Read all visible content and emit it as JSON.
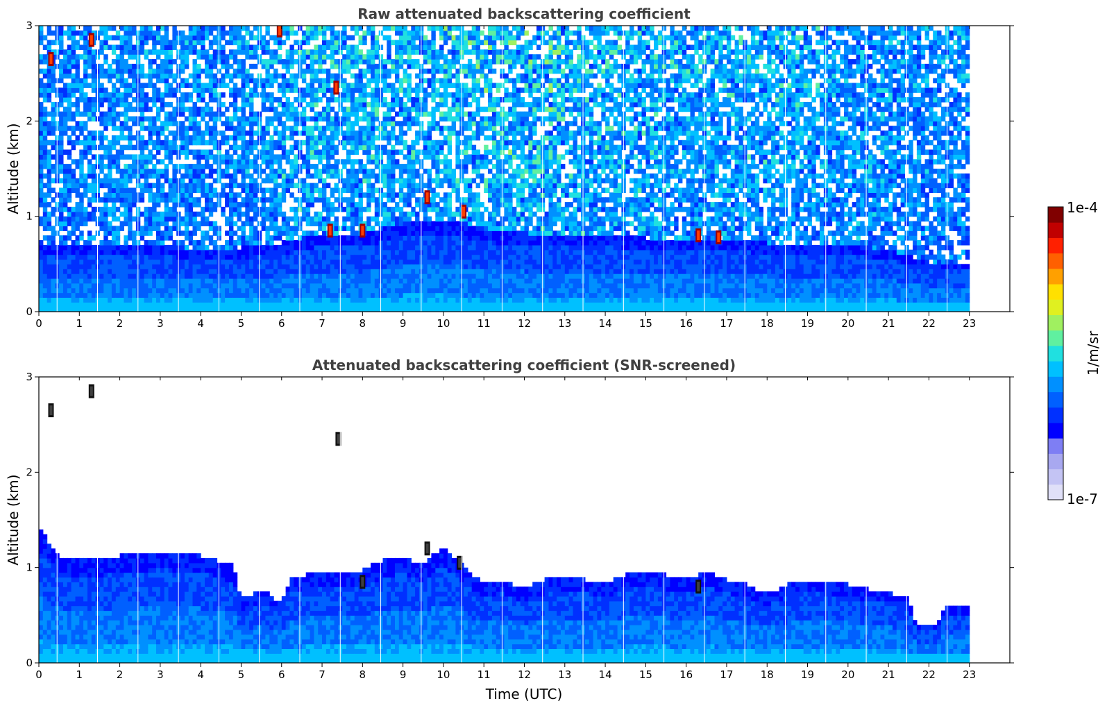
{
  "chart_data": [
    {
      "type": "heatmap",
      "title": "Raw attenuated backscattering coefficient",
      "xlabel": "",
      "ylabel": "Altitude (km)",
      "xlim": [
        0,
        24
      ],
      "ylim": [
        0,
        3
      ],
      "x_ticks": [
        "0",
        "1",
        "2",
        "3",
        "4",
        "5",
        "6",
        "7",
        "8",
        "9",
        "10",
        "11",
        "12",
        "13",
        "14",
        "15",
        "16",
        "17",
        "18",
        "19",
        "20",
        "21",
        "22",
        "23"
      ],
      "y_ticks": [
        "0",
        "1",
        "2",
        "3"
      ],
      "data_extent_x": [
        0,
        23
      ],
      "signal_top_km": [
        [
          0,
          0.7
        ],
        [
          1,
          0.7
        ],
        [
          2,
          0.7
        ],
        [
          3,
          0.7
        ],
        [
          4,
          0.6
        ],
        [
          5,
          0.65
        ],
        [
          6,
          0.7
        ],
        [
          7,
          0.8
        ],
        [
          8,
          0.8
        ],
        [
          9,
          0.9
        ],
        [
          10,
          0.95
        ],
        [
          11,
          0.85
        ],
        [
          12,
          0.8
        ],
        [
          13,
          0.8
        ],
        [
          14,
          0.8
        ],
        [
          15,
          0.75
        ],
        [
          16,
          0.75
        ],
        [
          17,
          0.75
        ],
        [
          18,
          0.7
        ],
        [
          19,
          0.7
        ],
        [
          20,
          0.7
        ],
        [
          21,
          0.62
        ],
        [
          22,
          0.5
        ],
        [
          23,
          0.5
        ]
      ],
      "noise_intensity_by_hour": [
        0.2,
        0.3,
        0.3,
        0.3,
        0.3,
        0.4,
        0.6,
        0.6,
        0.6,
        0.6,
        0.7,
        0.75,
        0.75,
        0.65,
        0.6,
        0.55,
        0.5,
        0.55,
        0.55,
        0.45,
        0.4,
        0.35,
        0.3,
        0.25
      ],
      "aerosol_layers": [
        {
          "x": 0.3,
          "y": 2.65
        },
        {
          "x": 1.3,
          "y": 2.85
        },
        {
          "x": 7.35,
          "y": 2.35
        },
        {
          "x": 5.95,
          "y": 2.95
        },
        {
          "x": 7.2,
          "y": 0.85
        },
        {
          "x": 8.0,
          "y": 0.85
        },
        {
          "x": 9.6,
          "y": 1.2
        },
        {
          "x": 10.5,
          "y": 1.05
        },
        {
          "x": 16.3,
          "y": 0.8
        },
        {
          "x": 16.8,
          "y": 0.78
        }
      ]
    },
    {
      "type": "heatmap",
      "title": "Attenuated backscattering coefficient (SNR-screened)",
      "xlabel": "Time (UTC)",
      "ylabel": "Altitude (km)",
      "xlim": [
        0,
        24
      ],
      "ylim": [
        0,
        3
      ],
      "x_ticks": [
        "0",
        "1",
        "2",
        "3",
        "4",
        "5",
        "6",
        "7",
        "8",
        "9",
        "10",
        "11",
        "12",
        "13",
        "14",
        "15",
        "16",
        "17",
        "18",
        "19",
        "20",
        "21",
        "22",
        "23"
      ],
      "y_ticks": [
        "0",
        "1",
        "2",
        "3"
      ],
      "data_extent_x": [
        0,
        23
      ],
      "screened_top_km": [
        [
          0,
          1.4
        ],
        [
          0.5,
          1.1
        ],
        [
          1,
          1.05
        ],
        [
          2,
          1.1
        ],
        [
          3,
          1.15
        ],
        [
          4,
          1.1
        ],
        [
          4.8,
          1.0
        ],
        [
          5.0,
          0.65
        ],
        [
          5.5,
          0.75
        ],
        [
          6.0,
          0.6
        ],
        [
          6.2,
          0.85
        ],
        [
          7,
          0.95
        ],
        [
          7.5,
          0.9
        ],
        [
          8,
          0.95
        ],
        [
          8.5,
          1.05
        ],
        [
          9,
          1.1
        ],
        [
          9.5,
          1.0
        ],
        [
          10,
          1.2
        ],
        [
          10.5,
          1.0
        ],
        [
          11,
          0.8
        ],
        [
          11.5,
          0.85
        ],
        [
          12,
          0.75
        ],
        [
          12.5,
          0.85
        ],
        [
          13,
          0.9
        ],
        [
          13.5,
          0.85
        ],
        [
          14,
          0.8
        ],
        [
          14.5,
          0.9
        ],
        [
          15,
          0.95
        ],
        [
          15.5,
          0.9
        ],
        [
          16,
          0.85
        ],
        [
          16.5,
          0.95
        ],
        [
          17,
          0.85
        ],
        [
          17.5,
          0.8
        ],
        [
          18,
          0.7
        ],
        [
          18.5,
          0.8
        ],
        [
          19,
          0.85
        ],
        [
          19.5,
          0.85
        ],
        [
          20,
          0.8
        ],
        [
          20.5,
          0.75
        ],
        [
          21,
          0.72
        ],
        [
          21.5,
          0.65
        ],
        [
          21.7,
          0.38
        ],
        [
          22.2,
          0.38
        ],
        [
          22.4,
          0.55
        ],
        [
          23,
          0.58
        ]
      ],
      "aerosol_layers": [
        {
          "x": 0.3,
          "y": 2.65
        },
        {
          "x": 1.3,
          "y": 2.85
        },
        {
          "x": 7.4,
          "y": 2.35
        },
        {
          "x": 8.0,
          "y": 0.85
        },
        {
          "x": 9.6,
          "y": 1.2
        },
        {
          "x": 10.4,
          "y": 1.05
        },
        {
          "x": 16.3,
          "y": 0.8
        }
      ]
    }
  ],
  "colorbar": {
    "label": "1/m/sr",
    "max_label": "1e-4",
    "min_label": "1e-7",
    "colors": [
      "#e0e0f8",
      "#c4c4f4",
      "#a8a8f0",
      "#7e7ef4",
      "#0000ff",
      "#0030ff",
      "#0060ff",
      "#0090ff",
      "#00c0ff",
      "#20e0e0",
      "#60f0a0",
      "#a0f060",
      "#e0f020",
      "#ffe000",
      "#ffa000",
      "#ff6000",
      "#ff2000",
      "#c00000",
      "#800000"
    ]
  }
}
